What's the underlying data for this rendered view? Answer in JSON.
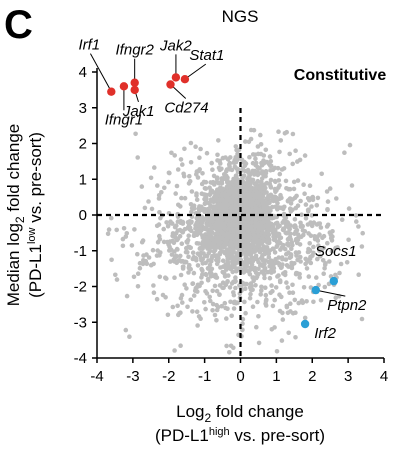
{
  "panel_letter": "C",
  "chart_data": {
    "type": "scatter",
    "title": "NGS",
    "region_label": "Constitutive",
    "xlabel": {
      "prefix": "Log",
      "sub": "2",
      "rest": " fold change"
    },
    "xlabel_line2": {
      "prefix": "(PD-L1",
      "sup": "high",
      "rest": " vs. pre-sort)"
    },
    "ylabel": {
      "prefix": "Median log",
      "sub": "2",
      "rest": " fold change"
    },
    "ylabel_line2": {
      "prefix": "(PD-L1",
      "sup": "low",
      "rest": " vs. pre-sort)"
    },
    "xlim": [
      -4,
      4
    ],
    "ylim": [
      -4,
      4
    ],
    "x_ticks": [
      "-4",
      "-3",
      "-2",
      "-1",
      "0",
      "1",
      "2",
      "3",
      "4"
    ],
    "y_ticks": [
      "4",
      "3",
      "2",
      "1",
      "0",
      "-1",
      "-2",
      "-3",
      "-4"
    ],
    "threshold_lines": {
      "vertical_x": 0,
      "horizontal_y": 0
    },
    "colors": {
      "background": "#bdbdbd",
      "positive_hits": "#e0302a",
      "negative_hits": "#2a9fd6"
    },
    "highlighted": [
      {
        "gene": "Irf1",
        "x": -3.6,
        "y": 3.45,
        "group": "positive"
      },
      {
        "gene": "Ifngr1",
        "x": -3.25,
        "y": 3.6,
        "group": "positive"
      },
      {
        "gene": "Ifngr2",
        "x": -2.95,
        "y": 3.7,
        "group": "positive"
      },
      {
        "gene": "Jak1",
        "x": -2.95,
        "y": 3.5,
        "group": "positive"
      },
      {
        "gene": "Cd274",
        "x": -1.95,
        "y": 3.65,
        "group": "positive"
      },
      {
        "gene": "Jak2",
        "x": -1.8,
        "y": 3.85,
        "group": "positive"
      },
      {
        "gene": "Stat1",
        "x": -1.55,
        "y": 3.8,
        "group": "positive"
      },
      {
        "gene": "Socs1",
        "x": 2.6,
        "y": -1.85,
        "group": "negative"
      },
      {
        "gene": "Ptpn2",
        "x": 2.1,
        "y": -2.1,
        "group": "negative"
      },
      {
        "gene": "Irf2",
        "x": 1.8,
        "y": -3.05,
        "group": "negative"
      }
    ],
    "background_points": "thousands of gene-level points; dense cloud centred near (0, 0), spreading to about x -3.5..3.5 and y -3.8..2.3"
  }
}
